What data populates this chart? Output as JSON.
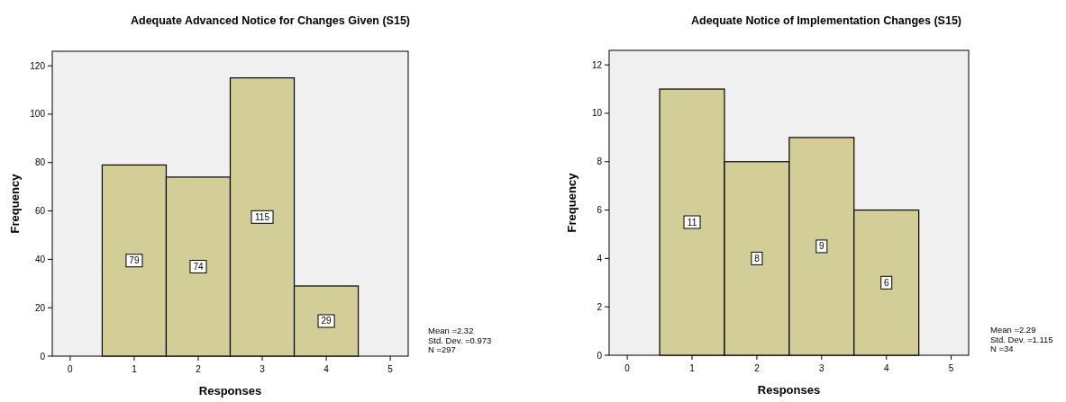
{
  "chart_data": [
    {
      "type": "histogram",
      "title": "Adequate Advanced Notice for Changes Given (S15)",
      "xlabel": "Responses",
      "ylabel": "Frequency",
      "bins": [
        0.5,
        1.5,
        2.5,
        3.5,
        4.5
      ],
      "values": [
        79,
        74,
        115,
        29
      ],
      "color": "#d3ce97",
      "xlim": [
        -0.28,
        5.28
      ],
      "xticks": [
        0,
        1,
        2,
        3,
        4,
        5
      ],
      "ylim": [
        0,
        126
      ],
      "yticks": [
        0,
        20,
        40,
        60,
        80,
        100,
        120
      ],
      "data_labels": true,
      "grid": false,
      "annotations": [
        "Mean =2.32\nStd. Dev. =0.973\nN =297"
      ]
    },
    {
      "type": "histogram",
      "title": "Adequate Notice of Implementation Changes (S15)",
      "xlabel": "Responses",
      "ylabel": "Frequency",
      "bins": [
        0.5,
        1.5,
        2.5,
        3.5,
        4.5
      ],
      "values": [
        11,
        8,
        9,
        6
      ],
      "color": "#d3ce97",
      "xlim": [
        -0.28,
        5.27
      ],
      "xticks": [
        0,
        1,
        2,
        3,
        4,
        5
      ],
      "ylim": [
        0,
        12.6
      ],
      "yticks": [
        0,
        2,
        4,
        6,
        8,
        10,
        12
      ],
      "data_labels": true,
      "grid": false,
      "annotations": [
        "Mean =2.29\nStd. Dev. =1.115\nN =34"
      ]
    }
  ]
}
